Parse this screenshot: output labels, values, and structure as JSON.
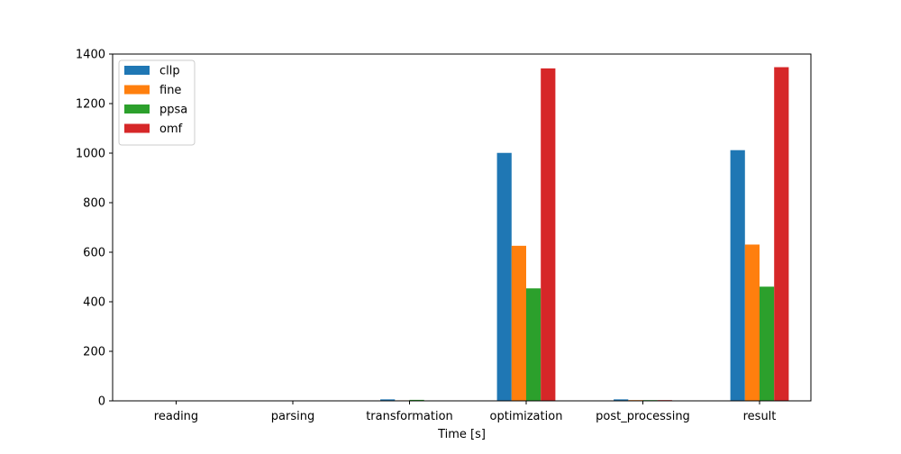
{
  "chart_data": {
    "type": "bar",
    "title": "",
    "xlabel": "Time [s]",
    "ylabel": "",
    "categories": [
      "reading",
      "parsing",
      "transformation",
      "optimization",
      "post_processing",
      "result"
    ],
    "series": [
      {
        "name": "cllp",
        "color": "#1f77b4",
        "values": [
          0.5,
          0.5,
          6,
          1001,
          6,
          1012
        ]
      },
      {
        "name": "fine",
        "color": "#ff7f0e",
        "values": [
          0.5,
          0.5,
          2,
          626,
          3,
          631
        ]
      },
      {
        "name": "ppsa",
        "color": "#2ca02c",
        "values": [
          0.5,
          0.5,
          4,
          454,
          3,
          461
        ]
      },
      {
        "name": "omf",
        "color": "#d62728",
        "values": [
          0.5,
          0.5,
          1,
          1342,
          3,
          1347
        ]
      }
    ],
    "ylim": [
      0,
      1400
    ],
    "yticks": [
      0,
      200,
      400,
      600,
      800,
      1000,
      1200,
      1400
    ],
    "grid": false,
    "legend_position": "top-left"
  }
}
